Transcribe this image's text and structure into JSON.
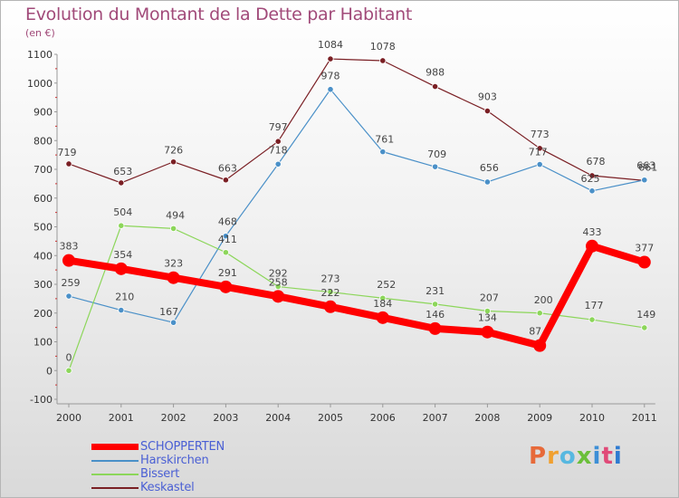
{
  "header": {
    "title": "Evolution du Montant de la Dette par Habitant",
    "subtitle": "(en €)"
  },
  "logo": {
    "text": "Proxiti"
  },
  "chart_data": {
    "type": "line",
    "title": "Evolution du Montant de la Dette par Habitant",
    "subtitle": "(en €)",
    "xlabel": "",
    "ylabel": "",
    "categories": [
      "2000",
      "2001",
      "2002",
      "2003",
      "2004",
      "2005",
      "2006",
      "2007",
      "2008",
      "2009",
      "2010",
      "2011"
    ],
    "ylim": [
      -100,
      1100
    ],
    "yticks": [
      -100,
      0,
      100,
      200,
      300,
      400,
      500,
      600,
      700,
      800,
      900,
      1000,
      1100
    ],
    "grid": false,
    "legend_position": "bottom-left",
    "series": [
      {
        "name": "SCHOPPERTEN",
        "color": "#ff0000",
        "values": [
          383,
          354,
          323,
          291,
          258,
          222,
          184,
          146,
          134,
          87,
          433,
          377
        ],
        "data_labels": [
          "383",
          "354",
          "323",
          "291",
          "258",
          "222",
          "184",
          "146",
          "134",
          "87",
          "433",
          "377"
        ]
      },
      {
        "name": "Harskirchen",
        "color": "#4a90c8",
        "values": [
          259,
          210,
          167,
          468,
          718,
          978,
          761,
          709,
          656,
          717,
          625,
          663
        ],
        "data_labels": [
          "259",
          "210",
          "167",
          "468",
          "718",
          "978",
          "761",
          "709",
          "656",
          "717",
          "625",
          "663"
        ]
      },
      {
        "name": "Bissert",
        "color": "#8cd65a",
        "values": [
          0,
          504,
          494,
          411,
          292,
          273,
          252,
          231,
          207,
          200,
          177,
          149
        ],
        "data_labels": [
          "0",
          "504",
          "494",
          "411",
          "292",
          "273",
          "252",
          "231",
          "207",
          "200",
          "177",
          "149"
        ]
      },
      {
        "name": "Keskastel",
        "color": "#7a1f24",
        "values": [
          719,
          653,
          726,
          663,
          797,
          1084,
          1078,
          988,
          903,
          773,
          678,
          661
        ],
        "data_labels": [
          "719",
          "653",
          "726",
          "663",
          "797",
          "1084",
          "1078",
          "988",
          "903",
          "773",
          "678",
          "661"
        ]
      }
    ]
  }
}
